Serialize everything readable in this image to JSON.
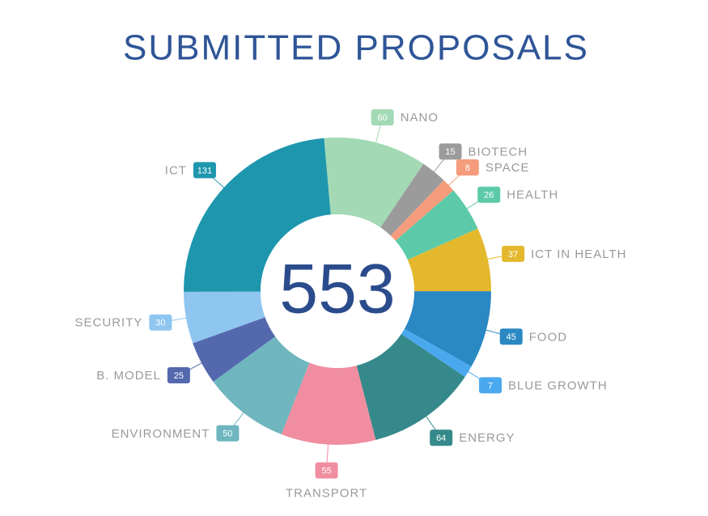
{
  "chart_data": {
    "type": "pie",
    "title": "SUBMITTED PROPOSALS",
    "total": 553,
    "categories": [
      "NANO",
      "BIOTECH",
      "SPACE",
      "HEALTH",
      "ICT IN HEALTH",
      "FOOD",
      "BLUE GROWTH",
      "ENERGY",
      "TRANSPORT",
      "ENVIRONMENT",
      "B. MODEL",
      "SECURITY",
      "ICT"
    ],
    "values": [
      60,
      15,
      8,
      26,
      37,
      45,
      7,
      64,
      55,
      50,
      25,
      30,
      131
    ],
    "colors": [
      "#a3d9b5",
      "#9b9b9b",
      "#f59c7c",
      "#5ccaa9",
      "#e4b82c",
      "#2a88c2",
      "#4aa8ee",
      "#35898a",
      "#f08da0",
      "#6fb6bf",
      "#5468ae",
      "#8fc6f0",
      "#1e97ae"
    ]
  }
}
